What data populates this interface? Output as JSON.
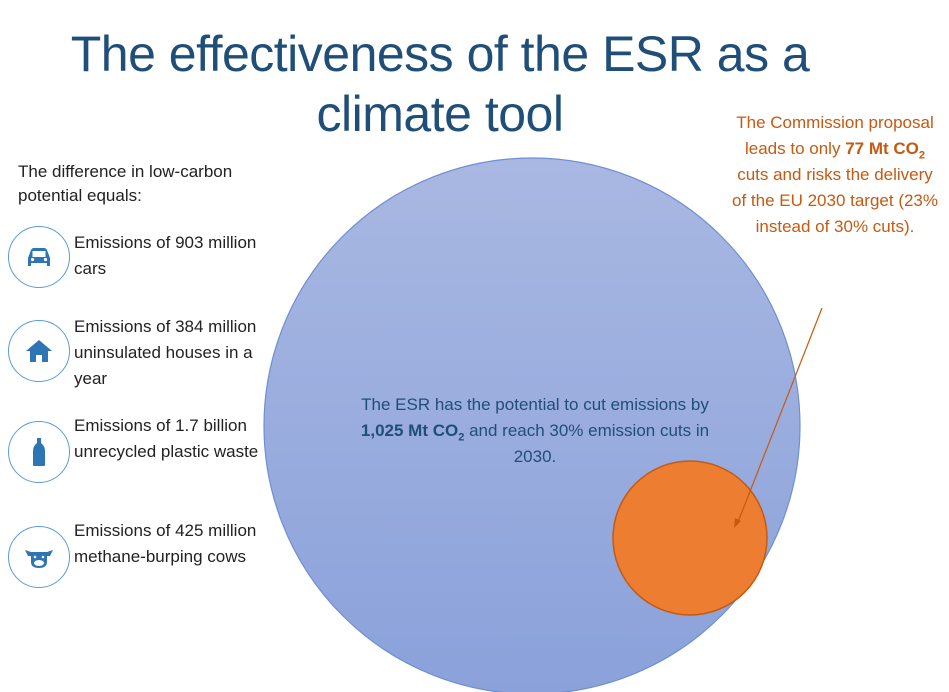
{
  "title": "The effectiveness of the ESR as a climate tool",
  "intro": "The difference in low-carbon potential equals:",
  "equivalents": [
    {
      "icon": "car-icon",
      "text": "Emissions of 903 million cars"
    },
    {
      "icon": "house-icon",
      "text": "Emissions of 384 million uninsulated houses in a year"
    },
    {
      "icon": "bottle-icon",
      "text": "Emissions of 1.7 billion unrecycled plastic waste"
    },
    {
      "icon": "cow-icon",
      "text": "Emissions of 425 million methane-burping cows"
    }
  ],
  "big_circle": {
    "prefix": "The ESR has the potential to cut emissions by ",
    "amount": "1,025 Mt CO",
    "sub": "2",
    "suffix": " and reach 30% emission cuts in 2030."
  },
  "callout": {
    "prefix": "The Commission proposal leads to only ",
    "amount": "77 Mt CO",
    "sub": "2",
    "suffix": " cuts and risks the delivery of the EU 2030 target (23% instead of 30% cuts)."
  },
  "colors": {
    "title": "#1f4e79",
    "big_circle_top": "#a9b8e2",
    "big_circle_bottom": "#8aa1da",
    "small_circle": "#ed7d31",
    "callout_text": "#c55a11",
    "icon": "#2e75b6"
  }
}
